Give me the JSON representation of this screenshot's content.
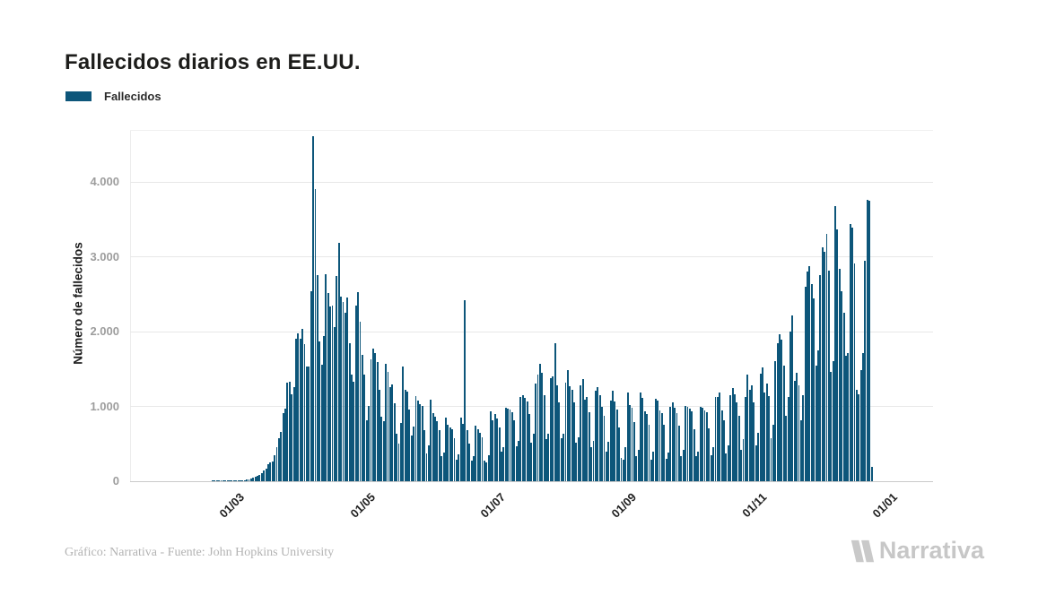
{
  "title": "Fallecidos diarios en EE.UU.",
  "legend": {
    "label": "Fallecidos"
  },
  "caption": "Gráfico: Narrativa - Fuente: John Hopkins University",
  "logo": {
    "text": "Narrativa",
    "icon": "narrativa-n-mark"
  },
  "colors": {
    "bar": "#0d567a",
    "grid": "#e8e8e8",
    "axis_line": "#c9c9c9",
    "y_tick_label": "#9d9d9d",
    "x_tick_label": "#1f1f1f",
    "title": "#1d1d1b",
    "caption": "#b3b3b3",
    "logo": "#c7c7c7"
  },
  "chart_data": {
    "type": "bar",
    "title": "Fallecidos diarios en EE.UU.",
    "series_name": "Fallecidos",
    "xlabel": "",
    "ylabel": "Número de fallecidos",
    "ylim": [
      0,
      4000
    ],
    "y_ticks": {
      "values": [
        0,
        1000,
        2000,
        3000,
        4000
      ],
      "labels": [
        "0",
        "1.000",
        "2.000",
        "3.000",
        "4.000"
      ]
    },
    "x_ticks": {
      "labels": [
        "01/03",
        "01/05",
        "01/07",
        "01/09",
        "01/11",
        "01/01"
      ]
    },
    "grid": "horizontal",
    "legend_position": "top-left",
    "start_date": "2020-02-15",
    "end_date": "2021-01-01",
    "frequency": "daily",
    "note_last_point_partial_day": true,
    "values": [
      0,
      0,
      0,
      0,
      0,
      0,
      0,
      0,
      0,
      0,
      0,
      0,
      0,
      1,
      1,
      1,
      1,
      1,
      2,
      2,
      3,
      4,
      4,
      6,
      7,
      9,
      11,
      14,
      18,
      23,
      30,
      41,
      49,
      58,
      68,
      85,
      112,
      140,
      164,
      225,
      247,
      268,
      342,
      453,
      572,
      660,
      909,
      968,
      1321,
      1331,
      1165,
      1255,
      1906,
      1973,
      1900,
      2035,
      1830,
      1528,
      1535,
      2542,
      4614,
      3908,
      2760,
      1867,
      1561,
      1939,
      2770,
      2520,
      2330,
      2350,
      2065,
      2747,
      3185,
      2470,
      2390,
      2250,
      2450,
      1850,
      1420,
      1324,
      2350,
      2528,
      2129,
      1687,
      1422,
      820,
      1008,
      1630,
      1772,
      1715,
      1595,
      1218,
      865,
      808,
      1568,
      1461,
      1263,
      1293,
      1037,
      638,
      505,
      774,
      1535,
      1223,
      1193,
      960,
      605,
      730,
      1134,
      1083,
      1031,
      1010,
      685,
      373,
      480,
      1093,
      906,
      861,
      802,
      685,
      331,
      389,
      851,
      760,
      721,
      690,
      580,
      285,
      358,
      850,
      770,
      2422,
      680,
      500,
      270,
      330,
      740,
      690,
      650,
      590,
      270,
      250,
      351,
      930,
      820,
      900,
      840,
      720,
      390,
      450,
      980,
      970,
      960,
      920,
      810,
      470,
      540,
      1120,
      1150,
      1110,
      1070,
      900,
      510,
      640,
      1300,
      1420,
      1566,
      1452,
      1150,
      560,
      640,
      1380,
      1400,
      1847,
      1280,
      1060,
      570,
      640,
      1320,
      1480,
      1270,
      1220,
      1050,
      510,
      590,
      1280,
      1360,
      1090,
      1120,
      920,
      450,
      540,
      1210,
      1260,
      1150,
      1000,
      880,
      400,
      530,
      1083,
      1208,
      1066,
      960,
      720,
      310,
      290,
      460,
      1180,
      1020,
      980,
      790,
      330,
      420,
      1190,
      1110,
      940,
      900,
      750,
      290,
      390,
      1100,
      1080,
      950,
      910,
      760,
      300,
      380,
      990,
      1050,
      980,
      910,
      740,
      330,
      420,
      1010,
      990,
      970,
      930,
      700,
      340,
      390,
      990,
      980,
      950,
      920,
      710,
      350,
      450,
      1120,
      1130,
      1180,
      950,
      810,
      370,
      480,
      1150,
      1250,
      1160,
      1050,
      870,
      420,
      560,
      1130,
      1420,
      1220,
      1280,
      1060,
      480,
      650,
      1440,
      1520,
      1180,
      1310,
      1140,
      580,
      750,
      1610,
      1850,
      1960,
      1890,
      1550,
      880,
      1130,
      2000,
      2216,
      1340,
      1455,
      1280,
      820,
      1150,
      2597,
      2804,
      2879,
      2637,
      2445,
      1550,
      1754,
      2760,
      3124,
      3067,
      3309,
      2815,
      1458,
      1600,
      3675,
      3362,
      2843,
      2543,
      2254,
      1675,
      1711,
      3434,
      3386,
      2915,
      1217,
      1157,
      1480,
      1711,
      2942,
      3755,
      3747,
      193
    ]
  }
}
